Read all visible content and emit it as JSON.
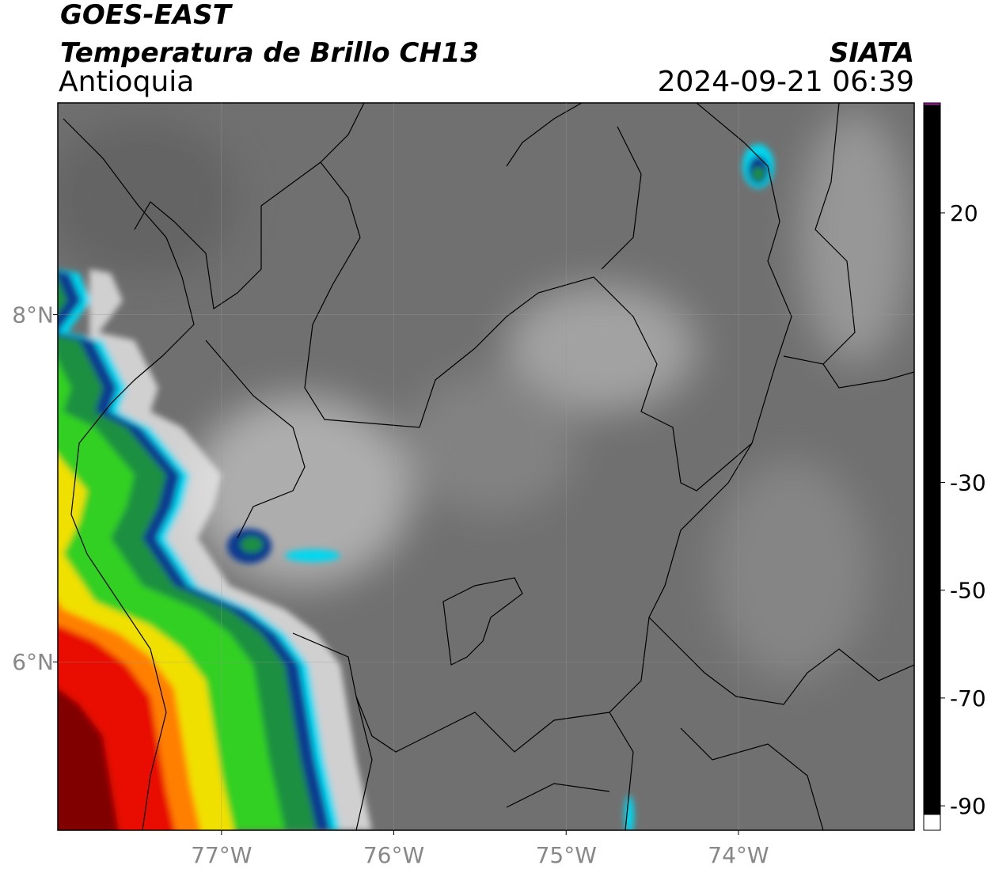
{
  "header": {
    "title": "GOES-EAST",
    "subtitle": "Temperatura de Brillo CH13",
    "region": "Antioquia",
    "source": "SIATA",
    "datetime": "2024-09-21 06:39"
  },
  "map": {
    "xlim": [
      -77.95,
      -72.98
    ],
    "ylim": [
      5.03,
      9.22
    ],
    "xticks": [
      {
        "value": -77,
        "label": "77°W"
      },
      {
        "value": -76,
        "label": "76°W"
      },
      {
        "value": -75,
        "label": "75°W"
      },
      {
        "value": -74,
        "label": "74°W"
      }
    ],
    "yticks": [
      {
        "value": 8,
        "label": "8°N"
      },
      {
        "value": 6,
        "label": "6°N"
      }
    ],
    "grid": true
  },
  "colorbar": {
    "lim": [
      -91.6,
      40.4
    ],
    "ticks": [
      20,
      -30,
      -50,
      -70,
      -90
    ],
    "stops": [
      {
        "value": 40,
        "color": "#000000"
      },
      {
        "value": 20,
        "color": "#808080"
      },
      {
        "value": -18.5,
        "color": "#ffffff"
      },
      {
        "value": -19.2,
        "color": "#00e0ff"
      },
      {
        "value": -27,
        "color": "#0040a0"
      },
      {
        "value": -29,
        "color": "#003080"
      },
      {
        "value": -33,
        "color": "#008040"
      },
      {
        "value": -40,
        "color": "#00e000"
      },
      {
        "value": -47,
        "color": "#e0f000"
      },
      {
        "value": -51,
        "color": "#ffb000"
      },
      {
        "value": -57,
        "color": "#ff2000"
      },
      {
        "value": -65,
        "color": "#700000"
      },
      {
        "value": -70,
        "color": "#000000"
      },
      {
        "value": -80,
        "color": "#d8c8d0"
      },
      {
        "value": -82,
        "color": "#e060c0"
      },
      {
        "value": -90,
        "color": "#a020a0"
      }
    ]
  }
}
